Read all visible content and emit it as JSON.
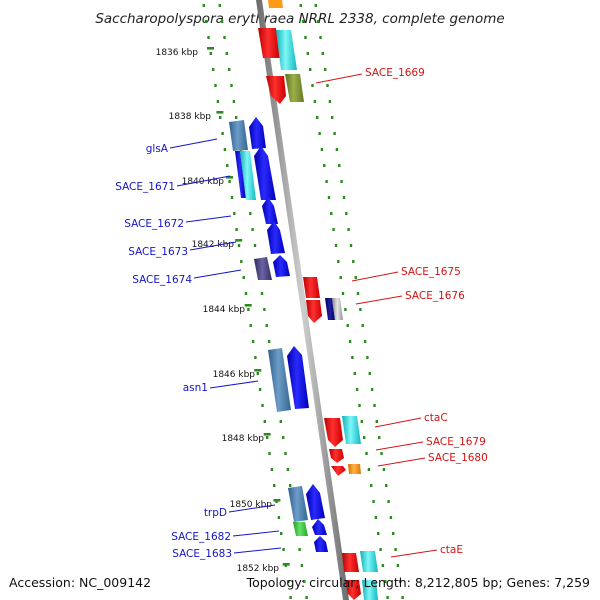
{
  "header": {
    "title": "Saccharopolyspora erythraea NRRL 2338, complete genome"
  },
  "scale": {
    "ticks": [
      "1836 kbp",
      "1838 kbp",
      "1840 kbp",
      "1842 kbp",
      "1844 kbp",
      "1846 kbp",
      "1848 kbp",
      "1850 kbp",
      "1852 kbp"
    ]
  },
  "labels": {
    "left": [
      "glsA",
      "SACE_1671",
      "SACE_1672",
      "SACE_1673",
      "SACE_1674",
      "asn1",
      "trpD",
      "SACE_1682",
      "SACE_1683"
    ],
    "right": [
      "SACE_1669",
      "SACE_1675",
      "SACE_1676",
      "ctaC",
      "SACE_1679",
      "SACE_1680",
      "ctaE"
    ]
  },
  "colors": {
    "backbone": "#8a8a8a",
    "track_dots": "#2e8b22",
    "forward_gene": "#1111ee",
    "reverse_gene": "#ee1111",
    "label_blue": "#1515cc",
    "label_red": "#d41414",
    "cyan": "#22e0e0",
    "steel_blue": "#4a7fae",
    "olive": "#7f9430",
    "orange": "#ff9914",
    "green": "#33cc33",
    "dark_slate": "#46407a",
    "navy": "#0a0a7a"
  },
  "footer": {
    "accession": "Accession: NC_009142",
    "summary": "Topology: circular; Length: 8,212,805 bp; Genes: 7,259"
  }
}
